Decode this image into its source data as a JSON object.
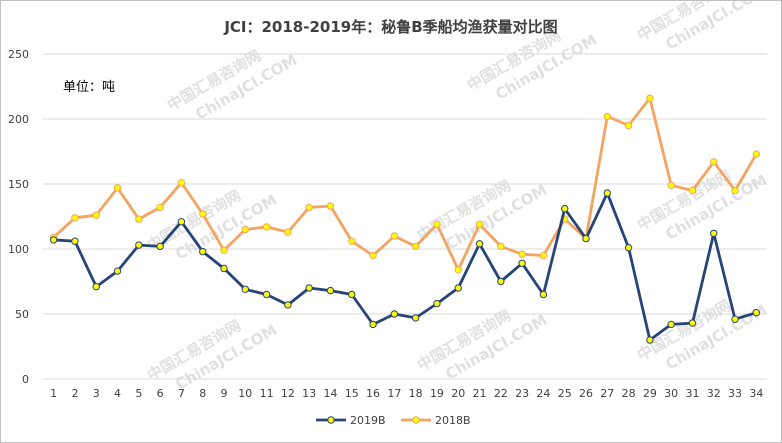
{
  "chart_data": {
    "type": "line",
    "title": "JCI：2018-2019年：秘鲁B季船均渔获量对比图",
    "unit_label": "单位：吨",
    "xlabel": "",
    "ylabel": "",
    "x": [
      "1",
      "2",
      "3",
      "4",
      "5",
      "6",
      "7",
      "8",
      "9",
      "10",
      "11",
      "12",
      "13",
      "14",
      "15",
      "16",
      "17",
      "18",
      "19",
      "20",
      "21",
      "22",
      "23",
      "24",
      "25",
      "26",
      "27",
      "28",
      "29",
      "30",
      "31",
      "32",
      "33",
      "34"
    ],
    "ylim": [
      0,
      250
    ],
    "yticks": [
      0,
      50,
      100,
      150,
      200,
      250
    ],
    "grid": true,
    "legend_position": "bottom",
    "series": [
      {
        "name": "2019B",
        "color": "#264478",
        "marker_color": "#ffff00",
        "values": [
          107,
          106,
          71,
          83,
          103,
          102,
          121,
          98,
          85,
          69,
          65,
          57,
          70,
          68,
          65,
          42,
          50,
          47,
          58,
          70,
          104,
          75,
          89,
          65,
          131,
          108,
          143,
          101,
          30,
          42,
          43,
          112,
          46,
          51
        ]
      },
      {
        "name": "2018B",
        "color": "#f4a460",
        "marker_color": "#ffff00",
        "values": [
          109,
          124,
          126,
          147,
          123,
          132,
          151,
          127,
          99,
          115,
          117,
          113,
          132,
          133,
          106,
          95,
          110,
          102,
          119,
          84,
          119,
          102,
          96,
          95,
          123,
          108,
          202,
          195,
          216,
          149,
          145,
          167,
          145,
          173
        ]
      }
    ]
  },
  "watermark": {
    "text_cn": "中国汇易咨询网",
    "text_en": "ChinaJCI.COM"
  }
}
